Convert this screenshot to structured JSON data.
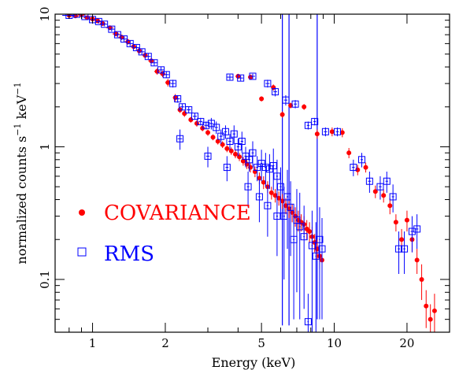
{
  "chart_data": {
    "type": "scatter",
    "title": "",
    "xlabel": "Energy (keV)",
    "ylabel_main": "normalized counts s",
    "ylabel_exp1": "−1",
    "ylabel_mid": " keV",
    "ylabel_exp2": "−1",
    "x_scale": "log",
    "y_scale": "log",
    "xlim": [
      0.7,
      30
    ],
    "ylim": [
      0.04,
      10
    ],
    "x_ticks": [
      {
        "value": 1,
        "label": "1"
      },
      {
        "value": 2,
        "label": "2"
      },
      {
        "value": 5,
        "label": "5"
      },
      {
        "value": 10,
        "label": "10"
      },
      {
        "value": 20,
        "label": "20"
      }
    ],
    "y_ticks": [
      {
        "value": 0.1,
        "label": "0.1"
      },
      {
        "value": 1,
        "label": "1"
      },
      {
        "value": 10,
        "label": "10"
      }
    ],
    "grid": false,
    "legend_position": "lower-left",
    "series": [
      {
        "name": "COVARIANCE",
        "color": "#ff0000",
        "marker": "filled-circle",
        "points": [
          [
            0.8,
            9.8,
            0.05,
            0.3
          ],
          [
            0.85,
            9.7,
            0.03,
            0.3
          ],
          [
            0.9,
            9.9,
            0.03,
            0.3
          ],
          [
            0.95,
            9.4,
            0.03,
            0.3
          ],
          [
            1.0,
            9.2,
            0.03,
            0.3
          ],
          [
            1.05,
            8.9,
            0.03,
            0.3
          ],
          [
            1.1,
            8.5,
            0.03,
            0.3
          ],
          [
            1.18,
            7.9,
            0.04,
            0.3
          ],
          [
            1.25,
            7.1,
            0.04,
            0.3
          ],
          [
            1.32,
            6.7,
            0.04,
            0.3
          ],
          [
            1.4,
            6.2,
            0.04,
            0.3
          ],
          [
            1.48,
            5.7,
            0.04,
            0.25
          ],
          [
            1.56,
            5.3,
            0.04,
            0.25
          ],
          [
            1.65,
            4.9,
            0.04,
            0.25
          ],
          [
            1.75,
            4.45,
            0.05,
            0.2
          ],
          [
            1.85,
            3.7,
            0.05,
            0.2
          ],
          [
            1.95,
            3.55,
            0.05,
            0.2
          ],
          [
            2.05,
            3.05,
            0.05,
            0.2
          ],
          [
            2.2,
            2.35,
            0.05,
            0.15
          ],
          [
            2.3,
            1.9,
            0.05,
            0.1
          ],
          [
            2.4,
            1.78,
            0.05,
            0.1
          ],
          [
            2.55,
            1.6,
            0.05,
            0.08
          ],
          [
            2.7,
            1.5,
            0.05,
            0.08
          ],
          [
            2.85,
            1.38,
            0.05,
            0.07
          ],
          [
            3.0,
            1.28,
            0.05,
            0.07
          ],
          [
            3.15,
            1.18,
            0.05,
            0.06
          ],
          [
            3.3,
            1.1,
            0.05,
            0.06
          ],
          [
            3.45,
            1.04,
            0.05,
            0.06
          ],
          [
            3.6,
            0.97,
            0.05,
            0.06
          ],
          [
            3.75,
            0.93,
            0.05,
            0.06
          ],
          [
            3.9,
            0.88,
            0.05,
            0.06
          ],
          [
            4.05,
            0.84,
            0.05,
            0.06
          ],
          [
            4.2,
            0.78,
            0.05,
            0.06
          ],
          [
            4.35,
            0.74,
            0.05,
            0.06
          ],
          [
            4.5,
            0.7,
            0.05,
            0.06
          ],
          [
            4.7,
            0.65,
            0.05,
            0.06
          ],
          [
            4.9,
            0.58,
            0.05,
            0.06
          ],
          [
            5.1,
            0.54,
            0.05,
            0.06
          ],
          [
            5.3,
            0.5,
            0.05,
            0.05
          ],
          [
            5.5,
            0.45,
            0.05,
            0.05
          ],
          [
            5.7,
            0.43,
            0.05,
            0.05
          ],
          [
            5.9,
            0.41,
            0.05,
            0.05
          ],
          [
            6.1,
            0.39,
            0.05,
            0.05
          ],
          [
            6.3,
            0.36,
            0.05,
            0.05
          ],
          [
            6.5,
            0.34,
            0.05,
            0.05
          ],
          [
            6.7,
            0.32,
            0.05,
            0.05
          ],
          [
            6.9,
            0.3,
            0.05,
            0.05
          ],
          [
            7.1,
            0.28,
            0.05,
            0.05
          ],
          [
            7.3,
            0.27,
            0.05,
            0.04
          ],
          [
            7.5,
            0.26,
            0.05,
            0.04
          ],
          [
            7.7,
            0.24,
            0.05,
            0.04
          ],
          [
            7.9,
            0.23,
            0.05,
            0.04
          ],
          [
            8.1,
            0.21,
            0.05,
            0.04
          ],
          [
            8.3,
            0.19,
            0.05,
            0.03
          ],
          [
            8.5,
            0.17,
            0.05,
            0.03
          ],
          [
            8.7,
            0.15,
            0.04,
            0.03
          ],
          [
            8.9,
            0.14,
            0.04,
            0.03
          ],
          [
            4.0,
            3.4,
            0.1,
            0.15
          ],
          [
            4.5,
            3.35,
            0.1,
            0.15
          ],
          [
            5.0,
            2.3,
            0.08,
            0.1
          ],
          [
            5.6,
            2.8,
            0.1,
            0.15
          ],
          [
            6.1,
            1.75,
            0.08,
            0.1
          ],
          [
            6.6,
            2.05,
            0.08,
            0.1
          ],
          [
            7.5,
            2.0,
            0.1,
            0.1
          ],
          [
            8.5,
            1.25,
            0.1,
            0.1
          ],
          [
            9.8,
            1.3,
            0.15,
            0.1
          ],
          [
            10.8,
            1.28,
            0.15,
            0.1
          ],
          [
            11.5,
            0.9,
            0.12,
            0.08
          ],
          [
            12.5,
            0.67,
            0.15,
            0.06
          ],
          [
            13.5,
            0.7,
            0.15,
            0.06
          ],
          [
            14.8,
            0.46,
            0.2,
            0.05
          ],
          [
            16.0,
            0.43,
            0.2,
            0.05
          ],
          [
            17.0,
            0.36,
            0.2,
            0.05
          ],
          [
            18.0,
            0.27,
            0.2,
            0.04
          ],
          [
            19.0,
            0.2,
            0.2,
            0.04
          ],
          [
            20.0,
            0.28,
            0.3,
            0.05
          ],
          [
            21.0,
            0.2,
            0.3,
            0.04
          ],
          [
            22.0,
            0.14,
            0.3,
            0.03
          ],
          [
            23.0,
            0.1,
            0.3,
            0.03
          ],
          [
            24.0,
            0.063,
            0.3,
            0.02
          ],
          [
            25.0,
            0.05,
            0.3,
            0.015
          ],
          [
            26.0,
            0.058,
            0.3,
            0.02
          ]
        ]
      },
      {
        "name": "RMS",
        "color": "#0000ff",
        "marker": "open-square",
        "points": [
          [
            0.8,
            9.8,
            0.05,
            0.3
          ],
          [
            0.86,
            10.0,
            0.03,
            0.3
          ],
          [
            0.93,
            9.6,
            0.03,
            0.3
          ],
          [
            1.0,
            9.1,
            0.03,
            0.3
          ],
          [
            1.06,
            8.8,
            0.03,
            0.3
          ],
          [
            1.12,
            8.4,
            0.03,
            0.3
          ],
          [
            1.2,
            7.7,
            0.04,
            0.3
          ],
          [
            1.27,
            7.0,
            0.04,
            0.3
          ],
          [
            1.35,
            6.5,
            0.04,
            0.3
          ],
          [
            1.43,
            6.0,
            0.04,
            0.3
          ],
          [
            1.52,
            5.6,
            0.04,
            0.25
          ],
          [
            1.6,
            5.2,
            0.04,
            0.25
          ],
          [
            1.7,
            4.8,
            0.04,
            0.25
          ],
          [
            1.8,
            4.3,
            0.05,
            0.2
          ],
          [
            1.92,
            3.8,
            0.05,
            0.2
          ],
          [
            2.02,
            3.5,
            0.05,
            0.2
          ],
          [
            2.15,
            3.0,
            0.05,
            0.2
          ],
          [
            2.25,
            2.3,
            0.05,
            0.15
          ],
          [
            2.35,
            2.0,
            0.05,
            0.1
          ],
          [
            2.5,
            1.9,
            0.05,
            0.1
          ],
          [
            2.65,
            1.7,
            0.05,
            0.1
          ],
          [
            2.8,
            1.55,
            0.05,
            0.1
          ],
          [
            2.95,
            1.45,
            0.05,
            0.1
          ],
          [
            3.1,
            1.5,
            0.05,
            0.15
          ],
          [
            3.25,
            1.4,
            0.05,
            0.15
          ],
          [
            3.4,
            1.2,
            0.05,
            0.15
          ],
          [
            3.55,
            1.3,
            0.05,
            0.15
          ],
          [
            3.7,
            1.1,
            0.05,
            0.15
          ],
          [
            3.85,
            1.25,
            0.05,
            0.2
          ],
          [
            4.0,
            1.0,
            0.05,
            0.15
          ],
          [
            4.15,
            1.1,
            0.05,
            0.2
          ],
          [
            4.3,
            0.85,
            0.05,
            0.15
          ],
          [
            4.45,
            0.8,
            0.05,
            0.15
          ],
          [
            4.6,
            0.9,
            0.05,
            0.2
          ],
          [
            4.8,
            0.7,
            0.05,
            0.15
          ],
          [
            5.0,
            0.75,
            0.05,
            0.2
          ],
          [
            5.2,
            0.7,
            0.05,
            0.2
          ],
          [
            5.4,
            0.68,
            0.05,
            0.2
          ],
          [
            5.6,
            0.72,
            0.05,
            0.25
          ],
          [
            5.8,
            0.6,
            0.05,
            0.2
          ],
          [
            6.0,
            0.5,
            0.05,
            0.2
          ],
          [
            6.2,
            0.3,
            0.05,
            0.2
          ],
          [
            6.4,
            0.42,
            0.05,
            0.25
          ],
          [
            6.6,
            0.35,
            0.05,
            0.2
          ],
          [
            6.8,
            0.2,
            0.05,
            0.15
          ],
          [
            7.0,
            0.28,
            0.05,
            0.2
          ],
          [
            7.2,
            0.25,
            0.05,
            0.2
          ],
          [
            7.5,
            0.21,
            0.05,
            0.15
          ],
          [
            7.8,
            0.048,
            0.05,
            0.03
          ],
          [
            8.1,
            0.18,
            0.05,
            0.15
          ],
          [
            8.4,
            0.15,
            0.05,
            0.12
          ],
          [
            8.7,
            0.2,
            0.05,
            0.15
          ],
          [
            8.9,
            0.17,
            0.05,
            0.12
          ],
          [
            2.3,
            1.15,
            0.05,
            0.2
          ],
          [
            3.0,
            0.85,
            0.05,
            0.15
          ],
          [
            3.6,
            0.7,
            0.05,
            0.15
          ],
          [
            4.4,
            0.5,
            0.05,
            0.15
          ],
          [
            4.9,
            0.42,
            0.05,
            0.15
          ],
          [
            5.3,
            0.36,
            0.05,
            0.15
          ],
          [
            5.8,
            0.3,
            0.05,
            0.15
          ],
          [
            3.7,
            3.35,
            0.1,
            0.15
          ],
          [
            4.1,
            3.3,
            0.1,
            0.15
          ],
          [
            4.6,
            3.4,
            0.1,
            0.15
          ],
          [
            5.3,
            3.0,
            0.1,
            0.2
          ],
          [
            5.7,
            2.6,
            0.1,
            0.2
          ],
          [
            6.3,
            2.25,
            0.1,
            0.2
          ],
          [
            6.9,
            2.1,
            0.1,
            0.15
          ],
          [
            7.8,
            1.45,
            0.1,
            0.1
          ],
          [
            8.3,
            1.55,
            0.1,
            0.1
          ],
          [
            9.2,
            1.3,
            0.15,
            0.1
          ],
          [
            10.3,
            1.3,
            0.15,
            0.1
          ],
          [
            12.0,
            0.7,
            0.15,
            0.1
          ],
          [
            13.0,
            0.8,
            0.15,
            0.1
          ],
          [
            14.0,
            0.55,
            0.2,
            0.1
          ],
          [
            15.5,
            0.5,
            0.2,
            0.1
          ],
          [
            16.5,
            0.55,
            0.2,
            0.1
          ],
          [
            17.5,
            0.42,
            0.2,
            0.1
          ],
          [
            18.5,
            0.17,
            0.2,
            0.06
          ],
          [
            19.5,
            0.17,
            0.2,
            0.06
          ],
          [
            21.0,
            0.23,
            0.3,
            0.07
          ],
          [
            22.0,
            0.24,
            0.3,
            0.07
          ]
        ]
      }
    ],
    "legend": [
      {
        "label": "COVARIANCE",
        "color": "#ff0000",
        "marker": "filled-circle"
      },
      {
        "label": "RMS",
        "color": "#0000ff",
        "marker": "open-square"
      }
    ]
  }
}
